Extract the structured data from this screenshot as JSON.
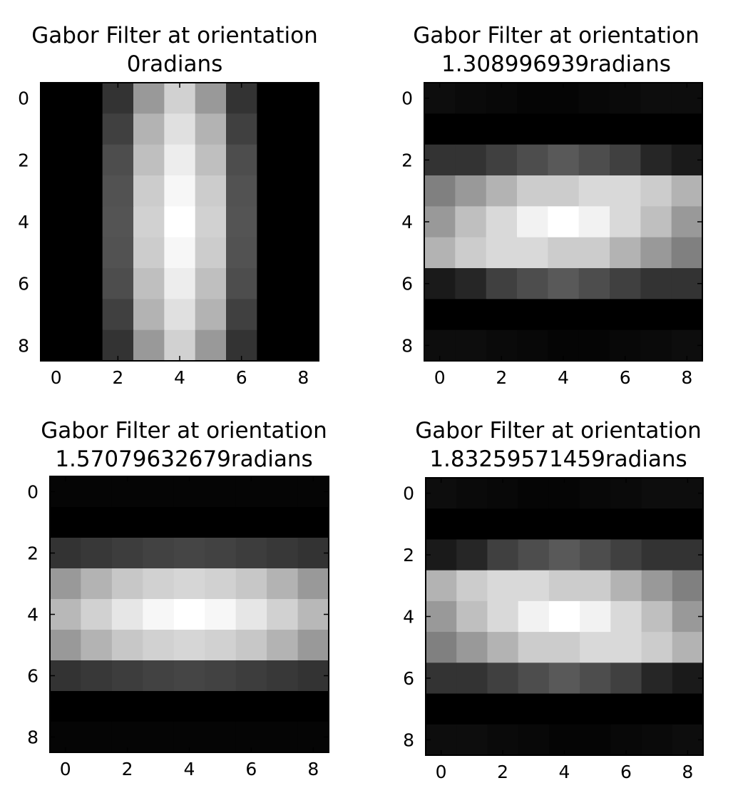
{
  "chart_data": [
    {
      "type": "heatmap",
      "title": "Gabor Filter at orientation\n0radians",
      "title_lines": [
        "Gabor Filter at orientation",
        "0radians"
      ],
      "orientation": 0,
      "colormap": "gray",
      "xlim": [
        -0.5,
        8.5
      ],
      "ylim": [
        8.5,
        -0.5
      ],
      "xticks": [
        0,
        2,
        4,
        6,
        8
      ],
      "yticks": [
        0,
        2,
        4,
        6,
        8
      ],
      "xtick_labels": [
        "0",
        "2",
        "4",
        "6",
        "8"
      ],
      "ytick_labels": [
        "0",
        "2",
        "4",
        "6",
        "8"
      ],
      "values": [
        [
          0.0,
          0.0,
          0.2,
          0.6,
          0.82,
          0.6,
          0.2,
          0.0,
          0.0
        ],
        [
          0.0,
          0.0,
          0.25,
          0.7,
          0.88,
          0.7,
          0.25,
          0.0,
          0.0
        ],
        [
          0.0,
          0.0,
          0.3,
          0.75,
          0.93,
          0.75,
          0.3,
          0.0,
          0.0
        ],
        [
          0.0,
          0.0,
          0.32,
          0.8,
          0.97,
          0.8,
          0.32,
          0.0,
          0.0
        ],
        [
          0.0,
          0.0,
          0.33,
          0.82,
          1.0,
          0.82,
          0.33,
          0.0,
          0.0
        ],
        [
          0.0,
          0.0,
          0.32,
          0.8,
          0.97,
          0.8,
          0.32,
          0.0,
          0.0
        ],
        [
          0.0,
          0.0,
          0.3,
          0.75,
          0.93,
          0.75,
          0.3,
          0.0,
          0.0
        ],
        [
          0.0,
          0.0,
          0.25,
          0.7,
          0.88,
          0.7,
          0.25,
          0.0,
          0.0
        ],
        [
          0.0,
          0.0,
          0.2,
          0.6,
          0.82,
          0.6,
          0.2,
          0.0,
          0.0
        ]
      ]
    },
    {
      "type": "heatmap",
      "title": "Gabor Filter at orientation\n1.308996939radians",
      "title_lines": [
        "Gabor Filter at orientation",
        "1.308996939radians"
      ],
      "orientation": 1.308996939,
      "colormap": "gray",
      "xlim": [
        -0.5,
        8.5
      ],
      "ylim": [
        8.5,
        -0.5
      ],
      "xticks": [
        0,
        2,
        4,
        6,
        8
      ],
      "yticks": [
        0,
        2,
        4,
        6,
        8
      ],
      "xtick_labels": [
        "0",
        "2",
        "4",
        "6",
        "8"
      ],
      "ytick_labels": [
        "0",
        "2",
        "4",
        "6",
        "8"
      ],
      "values": [
        [
          0.05,
          0.04,
          0.03,
          0.02,
          0.02,
          0.03,
          0.04,
          0.05,
          0.05
        ],
        [
          0.0,
          0.0,
          0.0,
          0.0,
          0.0,
          0.0,
          0.0,
          0.0,
          0.0
        ],
        [
          0.2,
          0.2,
          0.25,
          0.3,
          0.35,
          0.3,
          0.25,
          0.15,
          0.1
        ],
        [
          0.5,
          0.6,
          0.7,
          0.8,
          0.8,
          0.85,
          0.85,
          0.8,
          0.7
        ],
        [
          0.6,
          0.75,
          0.85,
          0.95,
          1.0,
          0.95,
          0.85,
          0.75,
          0.6
        ],
        [
          0.7,
          0.8,
          0.85,
          0.85,
          0.8,
          0.8,
          0.7,
          0.6,
          0.5
        ],
        [
          0.1,
          0.15,
          0.25,
          0.3,
          0.35,
          0.3,
          0.25,
          0.2,
          0.2
        ],
        [
          0.0,
          0.0,
          0.0,
          0.0,
          0.0,
          0.0,
          0.0,
          0.0,
          0.0
        ],
        [
          0.05,
          0.05,
          0.04,
          0.03,
          0.02,
          0.02,
          0.03,
          0.04,
          0.05
        ]
      ]
    },
    {
      "type": "heatmap",
      "title": "Gabor Filter at orientation\n1.57079632679radians",
      "title_lines": [
        "Gabor Filter at orientation",
        "1.57079632679radians"
      ],
      "orientation": 1.57079632679,
      "colormap": "gray",
      "xlim": [
        -0.5,
        8.5
      ],
      "ylim": [
        8.5,
        -0.5
      ],
      "xticks": [
        0,
        2,
        4,
        6,
        8
      ],
      "yticks": [
        0,
        2,
        4,
        6,
        8
      ],
      "xtick_labels": [
        "0",
        "2",
        "4",
        "6",
        "8"
      ],
      "ytick_labels": [
        "0",
        "2",
        "4",
        "6",
        "8"
      ],
      "values": [
        [
          0.02,
          0.02,
          0.02,
          0.02,
          0.02,
          0.02,
          0.02,
          0.02,
          0.02
        ],
        [
          0.0,
          0.0,
          0.0,
          0.0,
          0.0,
          0.0,
          0.0,
          0.0,
          0.0
        ],
        [
          0.2,
          0.22,
          0.24,
          0.26,
          0.27,
          0.26,
          0.24,
          0.22,
          0.2
        ],
        [
          0.6,
          0.7,
          0.78,
          0.82,
          0.84,
          0.82,
          0.78,
          0.7,
          0.6
        ],
        [
          0.72,
          0.82,
          0.9,
          0.97,
          1.0,
          0.97,
          0.9,
          0.82,
          0.72
        ],
        [
          0.6,
          0.7,
          0.78,
          0.82,
          0.84,
          0.82,
          0.78,
          0.7,
          0.6
        ],
        [
          0.2,
          0.22,
          0.24,
          0.26,
          0.27,
          0.26,
          0.24,
          0.22,
          0.2
        ],
        [
          0.0,
          0.0,
          0.0,
          0.0,
          0.0,
          0.0,
          0.0,
          0.0,
          0.0
        ],
        [
          0.02,
          0.02,
          0.02,
          0.02,
          0.02,
          0.02,
          0.02,
          0.02,
          0.02
        ]
      ]
    },
    {
      "type": "heatmap",
      "title": "Gabor Filter at orientation\n1.83259571459radians",
      "title_lines": [
        "Gabor Filter at orientation",
        "1.83259571459radians"
      ],
      "orientation": 1.83259571459,
      "colormap": "gray",
      "xlim": [
        -0.5,
        8.5
      ],
      "ylim": [
        8.5,
        -0.5
      ],
      "xticks": [
        0,
        2,
        4,
        6,
        8
      ],
      "yticks": [
        0,
        2,
        4,
        6,
        8
      ],
      "xtick_labels": [
        "0",
        "2",
        "4",
        "6",
        "8"
      ],
      "ytick_labels": [
        "0",
        "2",
        "4",
        "6",
        "8"
      ],
      "values": [
        [
          0.05,
          0.04,
          0.03,
          0.02,
          0.02,
          0.03,
          0.04,
          0.05,
          0.05
        ],
        [
          0.0,
          0.0,
          0.0,
          0.0,
          0.0,
          0.0,
          0.0,
          0.0,
          0.0
        ],
        [
          0.1,
          0.15,
          0.25,
          0.3,
          0.35,
          0.3,
          0.25,
          0.2,
          0.2
        ],
        [
          0.7,
          0.8,
          0.85,
          0.85,
          0.8,
          0.8,
          0.7,
          0.6,
          0.5
        ],
        [
          0.6,
          0.75,
          0.85,
          0.95,
          1.0,
          0.95,
          0.85,
          0.75,
          0.6
        ],
        [
          0.5,
          0.6,
          0.7,
          0.8,
          0.8,
          0.85,
          0.85,
          0.8,
          0.7
        ],
        [
          0.2,
          0.2,
          0.25,
          0.3,
          0.35,
          0.3,
          0.25,
          0.15,
          0.1
        ],
        [
          0.0,
          0.0,
          0.0,
          0.0,
          0.0,
          0.0,
          0.0,
          0.0,
          0.0
        ],
        [
          0.05,
          0.05,
          0.04,
          0.03,
          0.02,
          0.02,
          0.03,
          0.04,
          0.05
        ]
      ]
    }
  ]
}
